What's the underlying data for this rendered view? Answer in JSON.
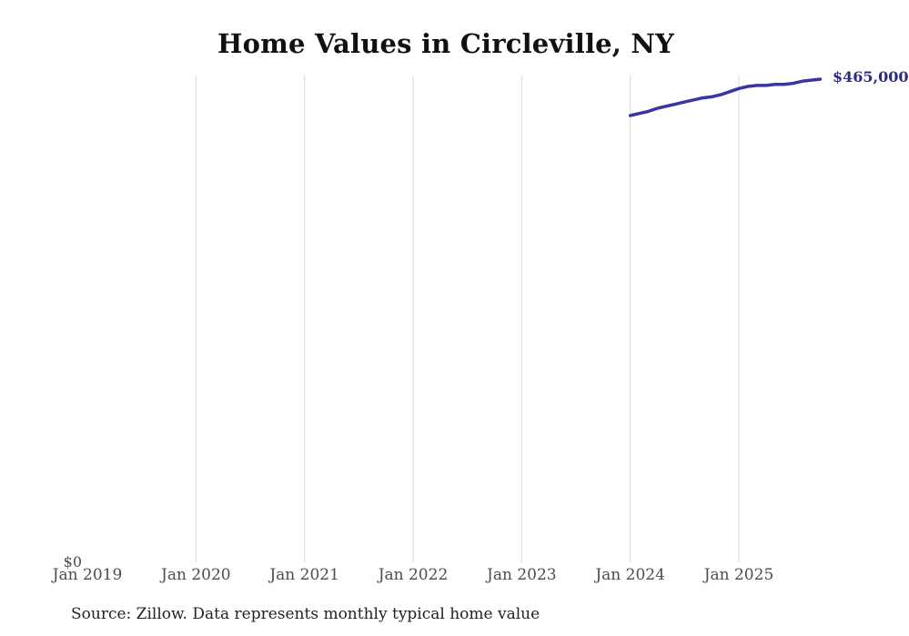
{
  "title": "Home Values in Circleville, NY",
  "source_note": "Source: Zillow. Data represents monthly typical home value",
  "colors": {
    "line": "#3a34a5",
    "end_label": "#2d2b80",
    "gridline": "#d9d9d9",
    "axis_label": "#4d4d4d",
    "title": "#111111",
    "source": "#222222",
    "background": "#ffffff"
  },
  "chart_data": {
    "type": "line",
    "title": "Home Values in Circleville, NY",
    "xlabel": "",
    "ylabel": "",
    "ylim": [
      0,
      465000
    ],
    "grid": "vertical-only",
    "legend": "none",
    "y_zero_tick_label": "$0",
    "end_label": "$465,000",
    "x_tick_labels": [
      "Jan 2019",
      "Jan 2020",
      "Jan 2021",
      "Jan 2022",
      "Jan 2023",
      "Jan 2024",
      "Jan 2025"
    ],
    "gridline_years": [
      2020,
      2021,
      2022,
      2023,
      2024,
      2025
    ],
    "x_axis_start": "Jan 2019",
    "series": [
      {
        "name": "Monthly typical home value",
        "points": [
          [
            "2024-01",
            430000
          ],
          [
            "2024-02",
            432000
          ],
          [
            "2024-03",
            434000
          ],
          [
            "2024-04",
            437000
          ],
          [
            "2024-05",
            439000
          ],
          [
            "2024-06",
            441000
          ],
          [
            "2024-07",
            443000
          ],
          [
            "2024-08",
            445000
          ],
          [
            "2024-09",
            447000
          ],
          [
            "2024-10",
            448000
          ],
          [
            "2024-11",
            450000
          ],
          [
            "2024-12",
            453000
          ],
          [
            "2025-01",
            456000
          ],
          [
            "2025-02",
            458000
          ],
          [
            "2025-03",
            459000
          ],
          [
            "2025-04",
            459000
          ],
          [
            "2025-05",
            460000
          ],
          [
            "2025-06",
            460000
          ],
          [
            "2025-07",
            461000
          ],
          [
            "2025-08",
            463000
          ],
          [
            "2025-09",
            464000
          ],
          [
            "2025-10",
            465000
          ]
        ]
      }
    ]
  }
}
